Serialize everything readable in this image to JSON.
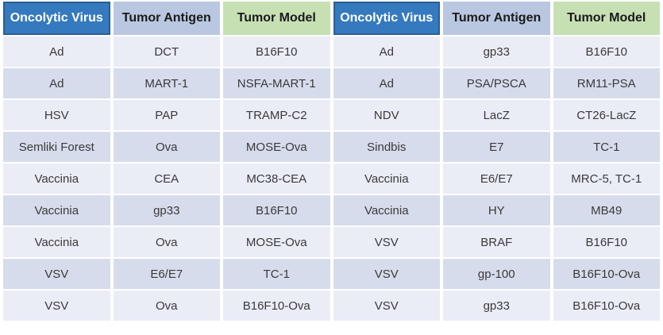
{
  "table": {
    "headers": [
      {
        "label": "Oncolytic Virus",
        "style": "blue"
      },
      {
        "label": "Tumor Antigen",
        "style": "lavender"
      },
      {
        "label": "Tumor Model",
        "style": "green"
      },
      {
        "label": "Oncolytic Virus",
        "style": "blue"
      },
      {
        "label": "Tumor Antigen",
        "style": "lavender"
      },
      {
        "label": "Tumor Model",
        "style": "green"
      }
    ],
    "rows": [
      [
        "Ad",
        "DCT",
        "B16F10",
        "Ad",
        "gp33",
        "B16F10"
      ],
      [
        "Ad",
        "MART-1",
        "NSFA-MART-1",
        "Ad",
        "PSA/PSCA",
        "RM11-PSA"
      ],
      [
        "HSV",
        "PAP",
        "TRAMP-C2",
        "NDV",
        "LacZ",
        "CT26-LacZ"
      ],
      [
        "Semliki Forest",
        "Ova",
        "MOSE-Ova",
        "Sindbis",
        "E7",
        "TC-1"
      ],
      [
        "Vaccinia",
        "CEA",
        "MC38-CEA",
        "Vaccinia",
        "E6/E7",
        "MRC-5, TC-1"
      ],
      [
        "Vaccinia",
        "gp33",
        "B16F10",
        "Vaccinia",
        "HY",
        "MB49"
      ],
      [
        "Vaccinia",
        "Ova",
        "MOSE-Ova",
        "VSV",
        "BRAF",
        "B16F10"
      ],
      [
        "VSV",
        "E6/E7",
        "TC-1",
        "VSV",
        "gp-100",
        "B16F10-Ova"
      ],
      [
        "VSV",
        "Ova",
        "B16F10-Ova",
        "VSV",
        "gp33",
        "B16F10-Ova"
      ]
    ],
    "colors": {
      "header_blue_bg": "#3579BE",
      "header_blue_border": "#2A5E94",
      "header_blue_text": "#FFFFFF",
      "header_lavender_bg": "#B9C7E1",
      "header_green_bg": "#C6E0B4",
      "header_dark_text": "#1A1A1A",
      "row_light_bg": "#EAEDF6",
      "row_dark_bg": "#D7DCEC",
      "body_text": "#3A3A3A"
    }
  }
}
